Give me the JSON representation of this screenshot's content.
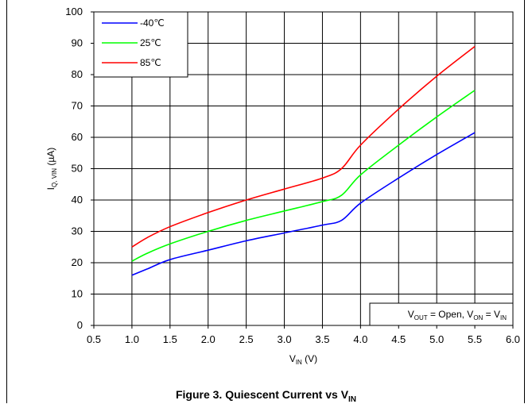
{
  "caption": {
    "text": "Figure 3. Quiescent Current vs V",
    "sub": "IN"
  },
  "chart_data": {
    "type": "line",
    "xlabel": {
      "main": "V",
      "sub": "IN",
      "unit": " (V)"
    },
    "ylabel": {
      "main": "I",
      "sub": "Q, VIN",
      "unit": " (µA)"
    },
    "xlim": [
      0.5,
      6.0
    ],
    "ylim": [
      0,
      100
    ],
    "x_ticks": [
      "0.5",
      "1.0",
      "1.5",
      "2.0",
      "2.5",
      "3.0",
      "3.5",
      "4.0",
      "4.5",
      "5.0",
      "5.5",
      "6.0"
    ],
    "y_ticks": [
      "0",
      "10",
      "20",
      "30",
      "40",
      "50",
      "60",
      "70",
      "80",
      "90",
      "100"
    ],
    "grid": true,
    "legend_position": "top-left",
    "annotation": {
      "v1": "V",
      "s1": "OUT",
      "t1": " = Open, V",
      "s2": "ON",
      "t2": " = V",
      "s3": "IN"
    },
    "series": [
      {
        "name": "-40℃",
        "color": "#0000ff",
        "x": [
          1.0,
          1.2,
          1.5,
          2.0,
          2.5,
          3.0,
          3.5,
          3.75,
          4.0,
          4.5,
          5.0,
          5.5
        ],
        "y": [
          16,
          18,
          21,
          24,
          27,
          29.5,
          32,
          33.5,
          39,
          47,
          54.5,
          61.5
        ]
      },
      {
        "name": "25℃",
        "color": "#00ff00",
        "x": [
          1.0,
          1.2,
          1.5,
          2.0,
          2.5,
          3.0,
          3.5,
          3.75,
          4.0,
          4.5,
          5.0,
          5.5
        ],
        "y": [
          20.5,
          23,
          26,
          30,
          33.5,
          36.5,
          39.5,
          41.5,
          48,
          57.5,
          66.5,
          75
        ]
      },
      {
        "name": "85℃",
        "color": "#ff0000",
        "x": [
          1.0,
          1.2,
          1.5,
          2.0,
          2.5,
          3.0,
          3.5,
          3.75,
          4.0,
          4.5,
          5.0,
          5.5
        ],
        "y": [
          25,
          28,
          31.5,
          36,
          40,
          43.5,
          47,
          50,
          57.5,
          69,
          79.5,
          89
        ]
      }
    ]
  }
}
